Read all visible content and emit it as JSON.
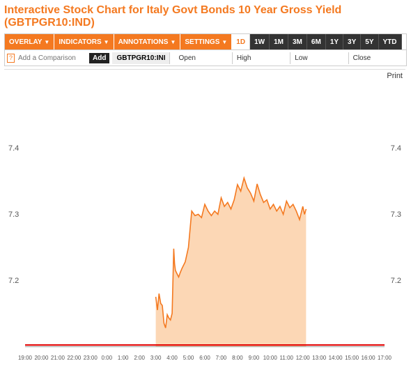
{
  "colors": {
    "title": "#f47920",
    "orange": "#f47920",
    "dark": "#333333",
    "area_fill": "#fbd0a8",
    "area_stroke": "#f47920",
    "red_line": "#e00000",
    "grid_text": "#555555"
  },
  "title": "Interactive Stock Chart for Italy Govt Bonds 10 Year Gross Yield (GBTPGR10:IND)",
  "toolbar": {
    "overlay": "OVERLAY",
    "indicators": "INDICATORS",
    "annotations": "ANNOTATIONS",
    "settings": "SETTINGS",
    "ranges": [
      "1D",
      "1W",
      "1M",
      "3M",
      "6M",
      "1Y",
      "3Y",
      "5Y",
      "YTD"
    ],
    "active_range": "1D"
  },
  "row2": {
    "help": "?",
    "comparison_placeholder": "Add a Comparison",
    "add_label": "Add",
    "ticker": "GBTPGR10:INI",
    "open": "Open",
    "high": "High",
    "low": "Low",
    "close": "Close"
  },
  "print_label": "Print",
  "chart": {
    "type": "area",
    "ylim": [
      7.1,
      7.5
    ],
    "yticks": [
      7.2,
      7.3,
      7.4
    ],
    "xlabels": [
      "19:00",
      "20:00",
      "21:00",
      "22:00",
      "23:00",
      "0:00",
      "1:00",
      "2:00",
      "3:00",
      "4:00",
      "5:00",
      "6:00",
      "7:00",
      "8:00",
      "9:00",
      "10:00",
      "11:00",
      "12:00",
      "13:00",
      "14:00",
      "15:00",
      "16:00",
      "17:00"
    ],
    "x_range": [
      0,
      22
    ],
    "red_line_y": 7.104,
    "background": "#ffffff",
    "series": {
      "stroke": "#f47920",
      "stroke_width": 1.6,
      "fill": "#fbd0a8",
      "fill_opacity": 0.85,
      "points": [
        [
          8.0,
          7.175
        ],
        [
          8.1,
          7.155
        ],
        [
          8.2,
          7.18
        ],
        [
          8.3,
          7.165
        ],
        [
          8.4,
          7.162
        ],
        [
          8.5,
          7.135
        ],
        [
          8.6,
          7.128
        ],
        [
          8.7,
          7.148
        ],
        [
          8.8,
          7.143
        ],
        [
          8.9,
          7.14
        ],
        [
          9.0,
          7.15
        ],
        [
          9.1,
          7.248
        ],
        [
          9.15,
          7.225
        ],
        [
          9.2,
          7.215
        ],
        [
          9.3,
          7.21
        ],
        [
          9.4,
          7.205
        ],
        [
          9.5,
          7.212
        ],
        [
          9.6,
          7.218
        ],
        [
          9.8,
          7.228
        ],
        [
          10.0,
          7.25
        ],
        [
          10.2,
          7.305
        ],
        [
          10.4,
          7.298
        ],
        [
          10.6,
          7.3
        ],
        [
          10.8,
          7.295
        ],
        [
          11.0,
          7.315
        ],
        [
          11.2,
          7.305
        ],
        [
          11.4,
          7.298
        ],
        [
          11.6,
          7.305
        ],
        [
          11.8,
          7.3
        ],
        [
          12.0,
          7.325
        ],
        [
          12.2,
          7.312
        ],
        [
          12.4,
          7.318
        ],
        [
          12.6,
          7.308
        ],
        [
          12.8,
          7.322
        ],
        [
          13.0,
          7.345
        ],
        [
          13.2,
          7.335
        ],
        [
          13.4,
          7.355
        ],
        [
          13.6,
          7.34
        ],
        [
          13.8,
          7.332
        ],
        [
          14.0,
          7.32
        ],
        [
          14.2,
          7.346
        ],
        [
          14.4,
          7.33
        ],
        [
          14.6,
          7.318
        ],
        [
          14.8,
          7.322
        ],
        [
          15.0,
          7.308
        ],
        [
          15.2,
          7.315
        ],
        [
          15.4,
          7.305
        ],
        [
          15.6,
          7.312
        ],
        [
          15.8,
          7.3
        ],
        [
          16.0,
          7.32
        ],
        [
          16.2,
          7.31
        ],
        [
          16.4,
          7.315
        ],
        [
          16.6,
          7.305
        ],
        [
          16.8,
          7.292
        ],
        [
          17.0,
          7.312
        ],
        [
          17.1,
          7.3
        ],
        [
          17.2,
          7.308
        ]
      ]
    }
  }
}
